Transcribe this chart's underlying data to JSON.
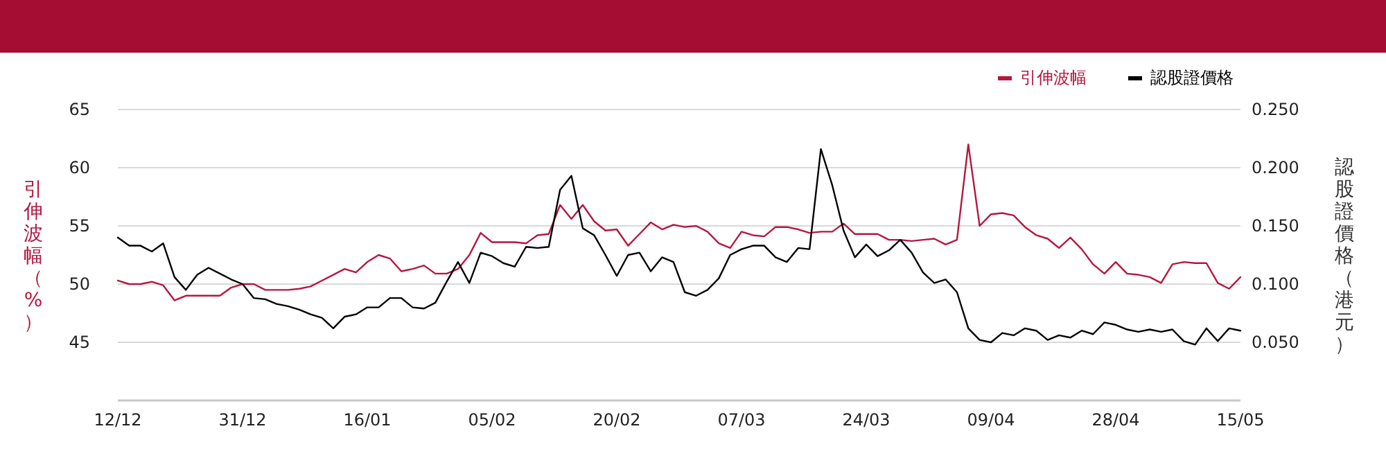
{
  "chart_data": {
    "type": "line",
    "categories": [
      "12/12",
      null,
      null,
      null,
      null,
      null,
      null,
      null,
      null,
      null,
      null,
      "31/12",
      null,
      null,
      null,
      null,
      null,
      null,
      null,
      null,
      null,
      null,
      "16/01",
      null,
      null,
      null,
      null,
      null,
      null,
      null,
      null,
      null,
      null,
      "05/02",
      null,
      null,
      null,
      null,
      null,
      null,
      null,
      null,
      null,
      null,
      "20/02",
      null,
      null,
      null,
      null,
      null,
      null,
      null,
      null,
      null,
      null,
      "07/03",
      null,
      null,
      null,
      null,
      null,
      null,
      null,
      null,
      null,
      null,
      "24/03",
      null,
      null,
      null,
      null,
      null,
      null,
      null,
      null,
      null,
      null,
      "09/04",
      null,
      null,
      null,
      null,
      null,
      null,
      null,
      null,
      null,
      null,
      "28/04",
      null,
      null,
      null,
      null,
      null,
      null,
      null,
      null,
      null,
      null,
      "15/05"
    ],
    "series": [
      {
        "name": "引伸波幅",
        "color": "#b5173f",
        "axis": "y",
        "values": [
          50.3,
          50.0,
          50.0,
          50.2,
          49.9,
          48.6,
          49.0,
          49.0,
          49.0,
          49.0,
          49.7,
          50.0,
          50.0,
          49.5,
          49.5,
          49.5,
          49.6,
          49.8,
          50.3,
          50.8,
          51.3,
          51.0,
          51.9,
          52.5,
          52.2,
          51.1,
          51.3,
          51.6,
          50.9,
          50.9,
          51.3,
          52.5,
          54.4,
          53.6,
          53.6,
          53.6,
          53.5,
          54.2,
          54.3,
          56.8,
          55.6,
          56.8,
          55.4,
          54.6,
          54.7,
          53.3,
          54.3,
          55.3,
          54.7,
          55.1,
          54.9,
          55.0,
          54.5,
          53.5,
          53.1,
          54.5,
          54.2,
          54.1,
          54.9,
          54.9,
          54.7,
          54.4,
          54.5,
          54.5,
          55.2,
          54.3,
          54.3,
          54.3,
          53.8,
          53.8,
          53.7,
          53.8,
          53.9,
          53.4,
          53.8,
          62.0,
          55.0,
          56.0,
          56.1,
          55.9,
          54.9,
          54.2,
          53.9,
          53.1,
          54.0,
          53.0,
          51.7,
          50.9,
          51.9,
          50.9,
          50.8,
          50.6,
          50.1,
          51.7,
          51.9,
          51.8,
          51.8,
          50.1,
          49.6,
          50.6
        ]
      },
      {
        "name": "認股證價格",
        "color": "#000000",
        "axis": "y2",
        "values": [
          0.14,
          0.133,
          0.133,
          0.128,
          0.135,
          0.106,
          0.095,
          0.108,
          0.114,
          0.109,
          0.104,
          0.1,
          0.088,
          0.087,
          0.083,
          0.081,
          0.078,
          0.074,
          0.071,
          0.062,
          0.072,
          0.074,
          0.08,
          0.08,
          0.088,
          0.088,
          0.08,
          0.079,
          0.084,
          0.102,
          0.119,
          0.101,
          0.127,
          0.124,
          0.118,
          0.115,
          0.132,
          0.131,
          0.132,
          0.181,
          0.193,
          0.148,
          0.142,
          0.125,
          0.107,
          0.125,
          0.127,
          0.111,
          0.123,
          0.119,
          0.093,
          0.09,
          0.095,
          0.105,
          0.125,
          0.13,
          0.133,
          0.133,
          0.123,
          0.119,
          0.131,
          0.13,
          0.216,
          0.185,
          0.146,
          0.123,
          0.134,
          0.124,
          0.129,
          0.138,
          0.127,
          0.11,
          0.101,
          0.104,
          0.093,
          0.062,
          0.052,
          0.05,
          0.058,
          0.056,
          0.062,
          0.06,
          0.052,
          0.056,
          0.054,
          0.06,
          0.057,
          0.067,
          0.065,
          0.061,
          0.059,
          0.061,
          0.059,
          0.061,
          0.051,
          0.048,
          0.062,
          0.051,
          0.062,
          0.06
        ]
      }
    ],
    "ylabel": "引伸波幅（%）",
    "y2label": "認股證價格（港元）",
    "ylim": [
      40,
      65
    ],
    "yticks": [
      45,
      50,
      55,
      60,
      65
    ],
    "y2lim": [
      0,
      0.25
    ],
    "y2ticks": [
      {
        "value": 0.05,
        "label": "0.050"
      },
      {
        "value": 0.1,
        "label": "0.100"
      },
      {
        "value": 0.15,
        "label": "0.150"
      },
      {
        "value": 0.2,
        "label": "0.200"
      },
      {
        "value": 0.25,
        "label": "0.250"
      }
    ],
    "grid": "y",
    "legend": "top right",
    "marker": "none",
    "line_style": "solid"
  }
}
